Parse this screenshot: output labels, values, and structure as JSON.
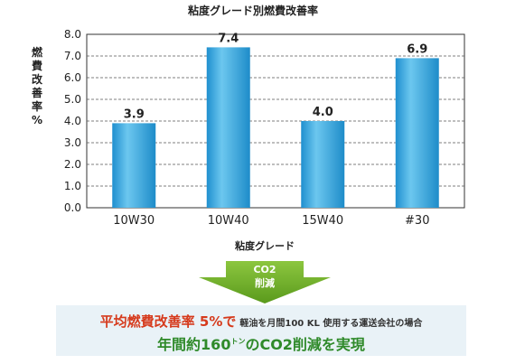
{
  "chart_data": {
    "type": "bar",
    "title": "粘度グレード別燃費改善率",
    "xlabel": "粘度グレード",
    "ylabel": "燃費改善率%",
    "categories": [
      "10W30",
      "10W40",
      "15W40",
      "#30"
    ],
    "values": [
      3.9,
      7.4,
      4.0,
      6.9
    ],
    "data_labels": [
      "3.9",
      "7.4",
      "4.0",
      "6.9"
    ],
    "ylim": [
      0,
      8
    ],
    "yticks": [
      "0.0",
      "1.0",
      "2.0",
      "3.0",
      "4.0",
      "5.0",
      "6.0",
      "7.0",
      "8.0"
    ],
    "grid": true
  },
  "arrow": {
    "line1": "CO2",
    "line2": "削減"
  },
  "result": {
    "highlight": "平均燃費改善率 5%で",
    "condition": "軽油を月間100 KL 使用する運送会社の場合",
    "main_prefix": "年間約160",
    "unit_small": "トン",
    "main_suffix": "のCO2削減を実現"
  },
  "colors": {
    "bar": "#2a9fd8",
    "bar_highlight": "#6cc7ef",
    "arrow": "#6aa823",
    "accent_red": "#d63a1c",
    "accent_green": "#2f8a2a"
  }
}
